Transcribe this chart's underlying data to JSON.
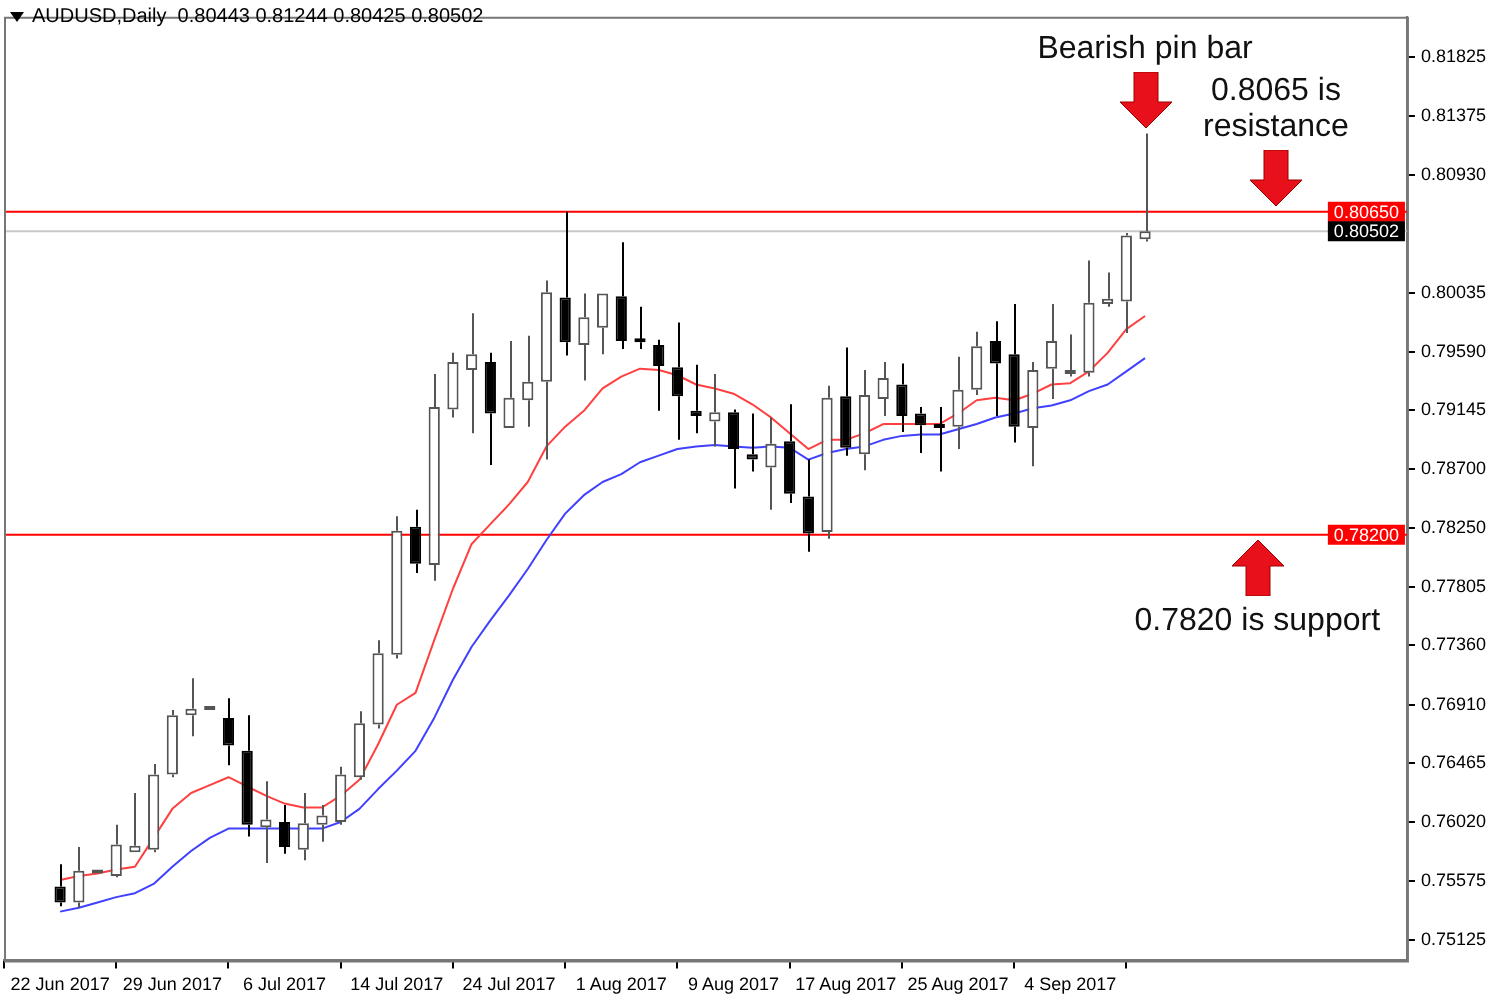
{
  "chart_data": {
    "type": "candlestick",
    "title": "AUDUSD,Daily  0.80443 0.81244 0.80425 0.80502",
    "categories": [
      "22 Jun 2017",
      null,
      null,
      null,
      null,
      null,
      "29 Jun 2017",
      null,
      null,
      null,
      null,
      null,
      "6 Jul 2017",
      null,
      null,
      null,
      null,
      null,
      "14 Jul 2017",
      null,
      null,
      null,
      null,
      null,
      "24 Jul 2017",
      null,
      null,
      null,
      null,
      null,
      "1 Aug 2017",
      null,
      null,
      null,
      null,
      null,
      "9 Aug 2017",
      null,
      null,
      null,
      null,
      null,
      "17 Aug 2017",
      null,
      null,
      null,
      null,
      null,
      "25 Aug 2017",
      null,
      null,
      null,
      null,
      null,
      "4 Sep 2017",
      null,
      null,
      null,
      null
    ],
    "ohlc": [
      [
        0.7553,
        0.757,
        0.7538,
        0.7541
      ],
      [
        0.7541,
        0.7583,
        0.7537,
        0.7565
      ],
      [
        0.7563,
        0.7566,
        0.7563,
        0.7566
      ],
      [
        0.7561,
        0.76,
        0.756,
        0.7585
      ],
      [
        0.7579,
        0.7624,
        0.7579,
        0.7584
      ],
      [
        0.7581,
        0.7646,
        0.7579,
        0.7638
      ],
      [
        0.7638,
        0.7687,
        0.7636,
        0.7683
      ],
      [
        0.7683,
        0.7711,
        0.7667,
        0.7688
      ],
      [
        0.7687,
        0.769,
        0.7687,
        0.769
      ],
      [
        0.7681,
        0.7696,
        0.7645,
        0.766
      ],
      [
        0.7656,
        0.7683,
        0.7591,
        0.76
      ],
      [
        0.7598,
        0.7633,
        0.7571,
        0.7604
      ],
      [
        0.7602,
        0.7615,
        0.7578,
        0.7583
      ],
      [
        0.7581,
        0.7624,
        0.7573,
        0.7601
      ],
      [
        0.76,
        0.7615,
        0.7587,
        0.7607
      ],
      [
        0.7602,
        0.7644,
        0.76,
        0.7638
      ],
      [
        0.7636,
        0.7686,
        0.7634,
        0.7677
      ],
      [
        0.7676,
        0.774,
        0.7673,
        0.773
      ],
      [
        0.7729,
        0.7834,
        0.7726,
        0.7823
      ],
      [
        0.7826,
        0.7839,
        0.7791,
        0.7798
      ],
      [
        0.7797,
        0.7942,
        0.7785,
        0.7917
      ],
      [
        0.7915,
        0.7958,
        0.7909,
        0.7951
      ],
      [
        0.7945,
        0.7988,
        0.7897,
        0.7957
      ],
      [
        0.7951,
        0.7958,
        0.7873,
        0.7912
      ],
      [
        0.7901,
        0.7967,
        0.7901,
        0.7924
      ],
      [
        0.7922,
        0.7971,
        0.7902,
        0.7936
      ],
      [
        0.7936,
        0.8013,
        0.7877,
        0.8004
      ],
      [
        0.8,
        0.8065,
        0.7956,
        0.7966
      ],
      [
        0.7964,
        0.8003,
        0.7937,
        0.7985
      ],
      [
        0.7977,
        0.8003,
        0.7957,
        0.8003
      ],
      [
        0.8001,
        0.8042,
        0.7961,
        0.7967
      ],
      [
        0.7967,
        0.7993,
        0.7961,
        0.7966
      ],
      [
        0.7964,
        0.7968,
        0.7914,
        0.7948
      ],
      [
        0.7947,
        0.7981,
        0.7892,
        0.7925
      ],
      [
        0.7914,
        0.7949,
        0.7897,
        0.791
      ],
      [
        0.7906,
        0.7942,
        0.7887,
        0.7913
      ],
      [
        0.7913,
        0.7915,
        0.7855,
        0.7885
      ],
      [
        0.7881,
        0.7912,
        0.7868,
        0.7877
      ],
      [
        0.7871,
        0.7909,
        0.7839,
        0.7889
      ],
      [
        0.7891,
        0.7919,
        0.7844,
        0.7851
      ],
      [
        0.7849,
        0.7877,
        0.7807,
        0.7821
      ],
      [
        0.7822,
        0.7933,
        0.7817,
        0.7924
      ],
      [
        0.7925,
        0.7962,
        0.788,
        0.7886
      ],
      [
        0.7881,
        0.7945,
        0.7869,
        0.7926
      ],
      [
        0.7923,
        0.7951,
        0.791,
        0.7939
      ],
      [
        0.7934,
        0.795,
        0.7898,
        0.791
      ],
      [
        0.7912,
        0.7917,
        0.7882,
        0.7903
      ],
      [
        0.7904,
        0.7917,
        0.7868,
        0.7901
      ],
      [
        0.7902,
        0.7955,
        0.7885,
        0.793
      ],
      [
        0.793,
        0.7974,
        0.7926,
        0.7963
      ],
      [
        0.7967,
        0.7982,
        0.791,
        0.795
      ],
      [
        0.7957,
        0.7995,
        0.789,
        0.7902
      ],
      [
        0.7901,
        0.7951,
        0.7872,
        0.7945
      ],
      [
        0.7946,
        0.7995,
        0.7923,
        0.7967
      ],
      [
        0.7942,
        0.7972,
        0.794,
        0.7943
      ],
      [
        0.7943,
        0.8028,
        0.794,
        0.7996
      ],
      [
        0.7995,
        0.8019,
        0.7993,
        0.7999
      ],
      [
        0.7997,
        0.8049,
        0.7973,
        0.8047
      ],
      [
        0.80443,
        0.81244,
        0.80425,
        0.80502
      ]
    ],
    "series": [
      {
        "type": "line",
        "color": "#ff4040",
        "values": [
          0.7558,
          0.7561,
          0.7563,
          0.7566,
          0.7568,
          0.759,
          0.7612,
          0.7624,
          0.763,
          0.7636,
          0.7629,
          0.7622,
          0.7616,
          0.7613,
          0.7613,
          0.7622,
          0.7634,
          0.7661,
          0.7691,
          0.77,
          0.774,
          0.7779,
          0.7813,
          0.7828,
          0.7843,
          0.786,
          0.7887,
          0.7902,
          0.7914,
          0.7931,
          0.794,
          0.7946,
          0.7945,
          0.7941,
          0.7934,
          0.7931,
          0.7927,
          0.7919,
          0.7909,
          0.7897,
          0.7885,
          0.7892,
          0.7892,
          0.7897,
          0.7904,
          0.7904,
          0.7904,
          0.7904,
          0.7912,
          0.7922,
          0.7924,
          0.7922,
          0.7927,
          0.7934,
          0.7935,
          0.7944,
          0.7958,
          0.7976,
          0.7986
        ]
      },
      {
        "type": "line",
        "color": "#4040ff",
        "values": [
          0.7534,
          0.7537,
          0.7541,
          0.7545,
          0.7548,
          0.7555,
          0.7568,
          0.758,
          0.759,
          0.7597,
          0.7597,
          0.7597,
          0.7597,
          0.7597,
          0.7597,
          0.7602,
          0.7612,
          0.7627,
          0.7641,
          0.7656,
          0.7681,
          0.771,
          0.7735,
          0.7755,
          0.7774,
          0.7794,
          0.7816,
          0.7836,
          0.785,
          0.786,
          0.7866,
          0.7875,
          0.788,
          0.7885,
          0.7887,
          0.7888,
          0.7887,
          0.7886,
          0.7887,
          0.7886,
          0.7877,
          0.7882,
          0.7885,
          0.7887,
          0.7892,
          0.7895,
          0.7896,
          0.7896,
          0.79,
          0.7904,
          0.7909,
          0.7912,
          0.7916,
          0.7918,
          0.7922,
          0.7929,
          0.7934,
          0.7944,
          0.7954
        ]
      }
    ],
    "ylim": [
      0.7497,
      0.8213
    ],
    "yticks": [
      {
        "value": 0.81825,
        "label": "0.81825"
      },
      {
        "value": 0.81375,
        "label": "0.81375"
      },
      {
        "value": 0.8093,
        "label": "0.80930"
      },
      {
        "value": 0.80035,
        "label": "0.80035"
      },
      {
        "value": 0.7959,
        "label": "0.79590"
      },
      {
        "value": 0.79145,
        "label": "0.79145"
      },
      {
        "value": 0.787,
        "label": "0.78700"
      },
      {
        "value": 0.7825,
        "label": "0.78250"
      },
      {
        "value": 0.77805,
        "label": "0.77805"
      },
      {
        "value": 0.7736,
        "label": "0.77360"
      },
      {
        "value": 0.7691,
        "label": "0.76910"
      },
      {
        "value": 0.76465,
        "label": "0.76465"
      },
      {
        "value": 0.7602,
        "label": "0.76020"
      },
      {
        "value": 0.75575,
        "label": "0.75575"
      },
      {
        "value": 0.75125,
        "label": "0.75125"
      }
    ],
    "ref_lines": [
      {
        "axis": "y",
        "value": 0.8065,
        "label": "0.80650",
        "color": "#ff0000"
      },
      {
        "axis": "y",
        "value": 0.80502,
        "label": "0.80502",
        "color": "#c8c8c8"
      },
      {
        "axis": "y",
        "value": 0.782,
        "label": "0.78200",
        "color": "#ff0000"
      }
    ],
    "annotations": [
      "Bearish pin bar",
      "0.8065 is resistance",
      "0.7820 is support"
    ],
    "legend": false,
    "grid": false
  }
}
